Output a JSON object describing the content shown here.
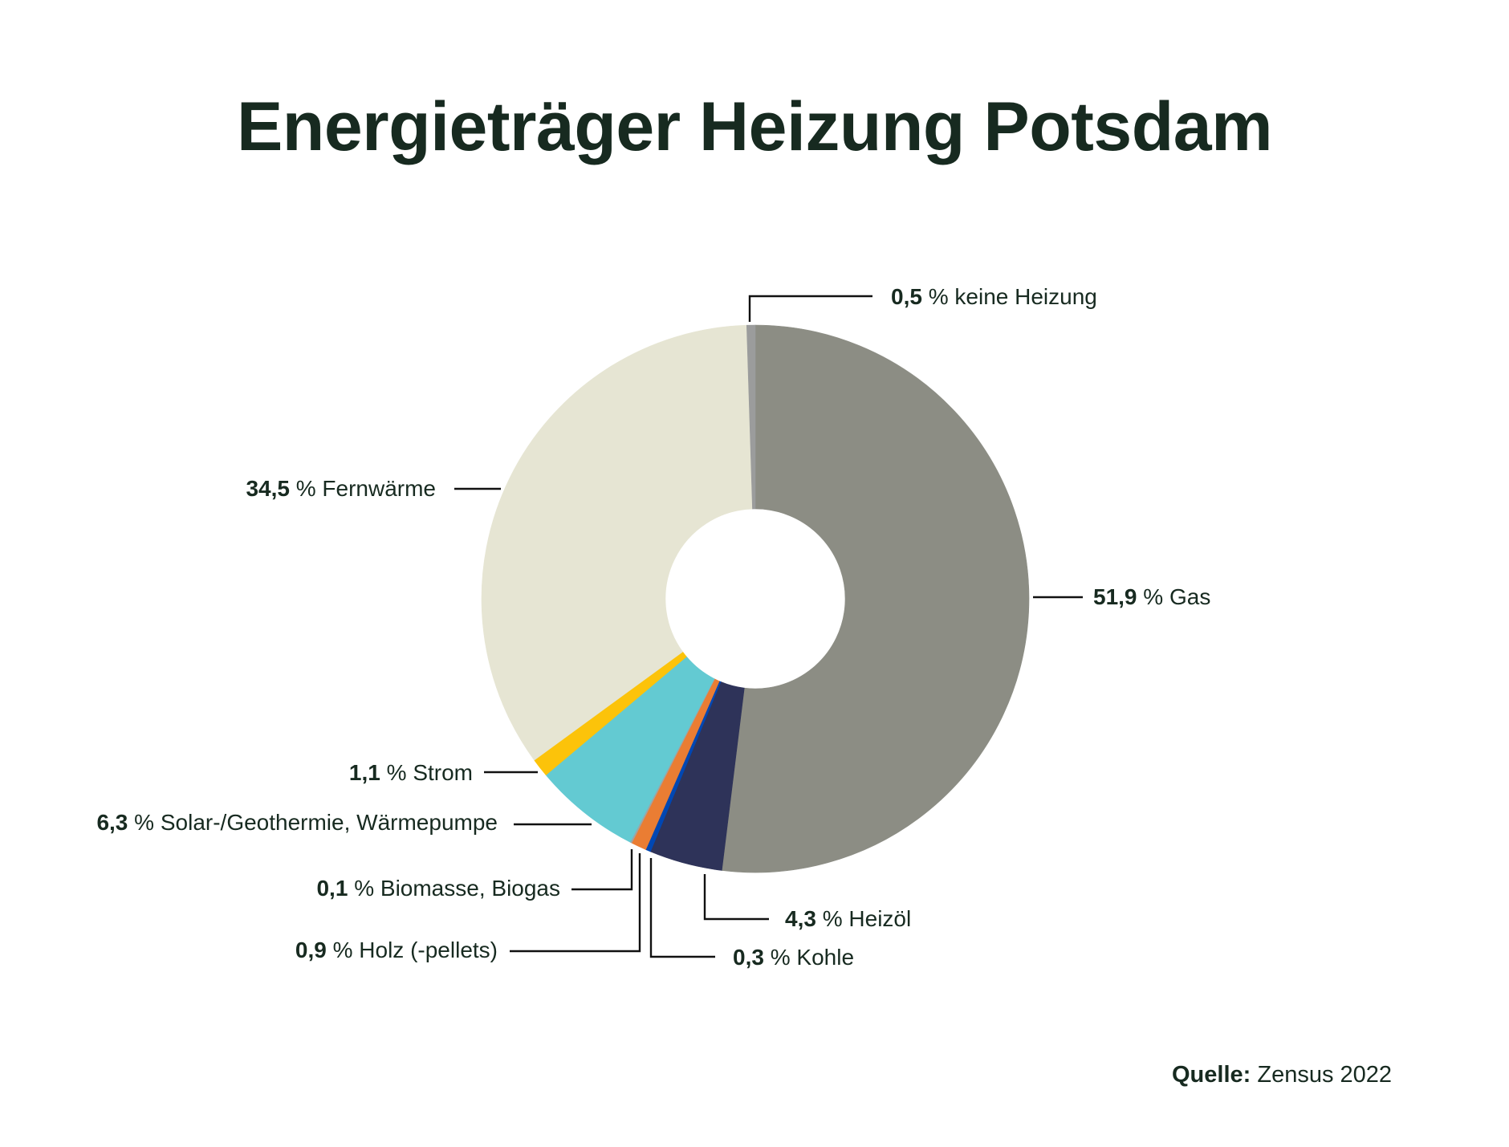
{
  "chart_data": {
    "type": "pie",
    "variant": "donut",
    "title": "Energieträger Heizung Potsdam",
    "unit": "%",
    "start_angle_deg": 0,
    "direction": "clockwise",
    "total": 99.9,
    "categories": [
      "Gas",
      "Heizöl",
      "Kohle",
      "Holz (-pellets)",
      "Biomasse, Biogas",
      "Solar-/Geothermie, Wärmepumpe",
      "Strom",
      "Fernwärme",
      "keine Heizung"
    ],
    "values": [
      51.9,
      4.3,
      0.3,
      0.9,
      0.1,
      6.3,
      1.1,
      34.5,
      0.5
    ],
    "value_labels": [
      "51,9",
      "4,3",
      "0,3",
      "0,9",
      "0,1",
      "6,3",
      "1,1",
      "34,5",
      "0,5"
    ],
    "colors": [
      "#8c8d84",
      "#2e3359",
      "#0047b3",
      "#ea7d33",
      "#a0a3a3",
      "#63cad2",
      "#fcc30a",
      "#e6e5d3",
      "#9b9c9c"
    ],
    "legend_position": "leader-line labels around donut",
    "source": "Zensus 2022"
  },
  "header": {
    "title": "Energieträger Heizung Potsdam"
  },
  "labels": {
    "gas": {
      "value": "51,9",
      "pct": "%",
      "name": "Gas"
    },
    "heizoel": {
      "value": "4,3",
      "pct": "%",
      "name": "Heizöl"
    },
    "kohle": {
      "value": "0,3",
      "pct": "%",
      "name": "Kohle"
    },
    "holz": {
      "value": "0,9",
      "pct": "%",
      "name": "Holz (-pellets)"
    },
    "biomasse": {
      "value": "0,1",
      "pct": "%",
      "name": "Biomasse, Biogas"
    },
    "solar": {
      "value": "6,3",
      "pct": "%",
      "name": "Solar-/Geothermie, Wärmepumpe"
    },
    "strom": {
      "value": "1,1",
      "pct": "%",
      "name": "Strom"
    },
    "fernwaerme": {
      "value": "34,5",
      "pct": "%",
      "name": "Fernwärme"
    },
    "keine": {
      "value": "0,5",
      "pct": "%",
      "name": "keine Heizung"
    }
  },
  "footer": {
    "source_label": "Quelle:",
    "source_value": "Zensus 2022"
  }
}
